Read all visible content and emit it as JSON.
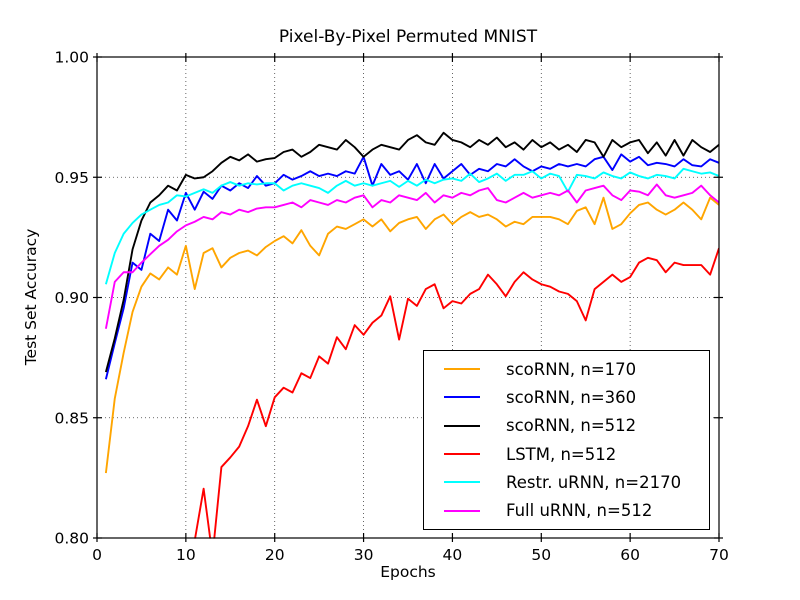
{
  "figure": {
    "title": "Pixel-By-Pixel Permuted MNIST"
  },
  "chart_data": {
    "type": "line",
    "title": "Pixel-By-Pixel Permuted MNIST",
    "xlabel": "Epochs",
    "ylabel": "Test Set Accuracy",
    "xlim": [
      0,
      70
    ],
    "ylim": [
      0.8,
      1.0
    ],
    "xticks": [
      0,
      10,
      20,
      30,
      40,
      50,
      60,
      70
    ],
    "xtick_labels": [
      "0",
      "10",
      "20",
      "30",
      "40",
      "50",
      "60",
      "70"
    ],
    "yticks": [
      0.8,
      0.85,
      0.9,
      0.95,
      1.0
    ],
    "ytick_labels": [
      "0.80",
      "0.85",
      "0.90",
      "0.95",
      "1.00"
    ],
    "grid": true,
    "grid_style": "dotted",
    "legend_position": "lower-right-inside",
    "x": [
      1,
      2,
      3,
      4,
      5,
      6,
      7,
      8,
      9,
      10,
      11,
      12,
      13,
      14,
      15,
      16,
      17,
      18,
      19,
      20,
      21,
      22,
      23,
      24,
      25,
      26,
      27,
      28,
      29,
      30,
      31,
      32,
      33,
      34,
      35,
      36,
      37,
      38,
      39,
      40,
      41,
      42,
      43,
      44,
      45,
      46,
      47,
      48,
      49,
      50,
      51,
      52,
      53,
      54,
      55,
      56,
      57,
      58,
      59,
      60,
      61,
      62,
      63,
      64,
      65,
      66,
      67,
      68,
      69,
      70
    ],
    "series": [
      {
        "name": "scoRNN, n=170",
        "color": "#FFA500",
        "values": [
          0.827,
          0.858,
          0.877,
          0.894,
          0.9045,
          0.91,
          0.9075,
          0.9125,
          0.9095,
          0.9215,
          0.9035,
          0.9185,
          0.9205,
          0.9125,
          0.9165,
          0.9185,
          0.9195,
          0.9175,
          0.921,
          0.9235,
          0.9255,
          0.9225,
          0.928,
          0.9215,
          0.9175,
          0.9265,
          0.9295,
          0.9285,
          0.9305,
          0.9325,
          0.9295,
          0.9325,
          0.9275,
          0.931,
          0.9325,
          0.9335,
          0.9285,
          0.9325,
          0.9345,
          0.9305,
          0.9335,
          0.9355,
          0.9335,
          0.9345,
          0.9325,
          0.9295,
          0.9315,
          0.9305,
          0.9335,
          0.9335,
          0.9335,
          0.9325,
          0.9305,
          0.936,
          0.9375,
          0.9305,
          0.9415,
          0.9285,
          0.9305,
          0.935,
          0.9385,
          0.9395,
          0.9365,
          0.9345,
          0.9365,
          0.9395,
          0.9365,
          0.9325,
          0.9415,
          0.9385
        ]
      },
      {
        "name": "scoRNN, n=360",
        "color": "#0000FF",
        "values": [
          0.866,
          0.881,
          0.8955,
          0.9145,
          0.9115,
          0.9265,
          0.9235,
          0.9365,
          0.932,
          0.9435,
          0.9365,
          0.944,
          0.941,
          0.9465,
          0.9445,
          0.9475,
          0.9455,
          0.9505,
          0.9465,
          0.9475,
          0.951,
          0.949,
          0.9505,
          0.9525,
          0.9505,
          0.9515,
          0.9505,
          0.9525,
          0.9515,
          0.9585,
          0.9465,
          0.9555,
          0.951,
          0.9525,
          0.949,
          0.9555,
          0.9475,
          0.9555,
          0.9495,
          0.9525,
          0.9555,
          0.951,
          0.9535,
          0.9525,
          0.9555,
          0.9545,
          0.9575,
          0.9545,
          0.9525,
          0.9545,
          0.9535,
          0.9555,
          0.9545,
          0.9555,
          0.9545,
          0.9575,
          0.9585,
          0.953,
          0.9595,
          0.9565,
          0.9585,
          0.955,
          0.956,
          0.9555,
          0.9545,
          0.9575,
          0.955,
          0.9545,
          0.9575,
          0.956
        ]
      },
      {
        "name": "scoRNN, n=512",
        "color": "#000000",
        "values": [
          0.869,
          0.883,
          0.899,
          0.92,
          0.932,
          0.9395,
          0.9425,
          0.9465,
          0.9445,
          0.951,
          0.9495,
          0.95,
          0.9525,
          0.956,
          0.9585,
          0.957,
          0.9595,
          0.9565,
          0.9575,
          0.958,
          0.9605,
          0.9615,
          0.9585,
          0.9605,
          0.9635,
          0.9625,
          0.9615,
          0.9655,
          0.9625,
          0.9585,
          0.9615,
          0.9635,
          0.9625,
          0.9615,
          0.9655,
          0.9675,
          0.9645,
          0.9635,
          0.9685,
          0.9655,
          0.9645,
          0.9625,
          0.9655,
          0.9635,
          0.9665,
          0.9625,
          0.9645,
          0.9615,
          0.9655,
          0.9625,
          0.9645,
          0.9615,
          0.9635,
          0.9605,
          0.9655,
          0.9645,
          0.9585,
          0.9655,
          0.9625,
          0.9645,
          0.9655,
          0.96,
          0.9645,
          0.959,
          0.9655,
          0.959,
          0.9655,
          0.9625,
          0.9605,
          0.9635
        ]
      },
      {
        "name": "LSTM, n=512",
        "color": "#FF0000",
        "values": [
          null,
          null,
          null,
          null,
          null,
          null,
          null,
          null,
          null,
          0.775,
          0.799,
          0.8205,
          0.7925,
          0.8295,
          0.8335,
          0.838,
          0.8465,
          0.8575,
          0.8465,
          0.8585,
          0.8625,
          0.8605,
          0.8685,
          0.8665,
          0.8755,
          0.8725,
          0.8835,
          0.8785,
          0.8885,
          0.8845,
          0.8895,
          0.8925,
          0.9005,
          0.8825,
          0.8995,
          0.8965,
          0.9035,
          0.9055,
          0.8955,
          0.8985,
          0.8975,
          0.9015,
          0.9035,
          0.9095,
          0.9055,
          0.9005,
          0.9065,
          0.9105,
          0.9075,
          0.9055,
          0.9045,
          0.9025,
          0.9015,
          0.8985,
          0.8905,
          0.9035,
          0.9065,
          0.9095,
          0.9065,
          0.9085,
          0.9145,
          0.9165,
          0.9155,
          0.9105,
          0.9145,
          0.9135,
          0.9135,
          0.9135,
          0.9095,
          0.9205
        ]
      },
      {
        "name": "Restr. uRNN, n=2170",
        "color": "#00FFFF",
        "values": [
          0.9055,
          0.9185,
          0.9265,
          0.931,
          0.9345,
          0.9365,
          0.9385,
          0.9395,
          0.9425,
          0.942,
          0.9435,
          0.945,
          0.9435,
          0.9465,
          0.948,
          0.9465,
          0.9475,
          0.947,
          0.9475,
          0.9475,
          0.9445,
          0.9465,
          0.9475,
          0.9465,
          0.9455,
          0.9435,
          0.9465,
          0.9485,
          0.9465,
          0.9475,
          0.9465,
          0.9475,
          0.9485,
          0.946,
          0.9485,
          0.9465,
          0.949,
          0.9475,
          0.949,
          0.9495,
          0.9485,
          0.9515,
          0.948,
          0.9495,
          0.9515,
          0.9485,
          0.951,
          0.951,
          0.9525,
          0.9495,
          0.9515,
          0.9505,
          0.944,
          0.951,
          0.9505,
          0.9495,
          0.952,
          0.9505,
          0.9495,
          0.952,
          0.9505,
          0.9495,
          0.951,
          0.9505,
          0.9495,
          0.9535,
          0.9525,
          0.9515,
          0.952,
          0.9505
        ]
      },
      {
        "name": "Full uRNN, n=512",
        "color": "#FF00FF",
        "values": [
          0.887,
          0.9065,
          0.9105,
          0.9105,
          0.9145,
          0.918,
          0.9215,
          0.924,
          0.9275,
          0.93,
          0.9315,
          0.9335,
          0.9325,
          0.9355,
          0.9345,
          0.9365,
          0.9355,
          0.937,
          0.9375,
          0.9375,
          0.9385,
          0.9395,
          0.9375,
          0.9405,
          0.9395,
          0.9385,
          0.9405,
          0.9395,
          0.9415,
          0.9425,
          0.9375,
          0.9405,
          0.9395,
          0.9425,
          0.9415,
          0.9405,
          0.9435,
          0.9395,
          0.9425,
          0.9415,
          0.9435,
          0.9425,
          0.9445,
          0.9455,
          0.9405,
          0.9395,
          0.9415,
          0.9435,
          0.9415,
          0.9425,
          0.9435,
          0.9425,
          0.9445,
          0.9395,
          0.9445,
          0.9455,
          0.9465,
          0.9425,
          0.9405,
          0.9445,
          0.944,
          0.9425,
          0.947,
          0.9425,
          0.9415,
          0.9425,
          0.9435,
          0.9465,
          0.9425,
          0.9395
        ]
      }
    ]
  }
}
